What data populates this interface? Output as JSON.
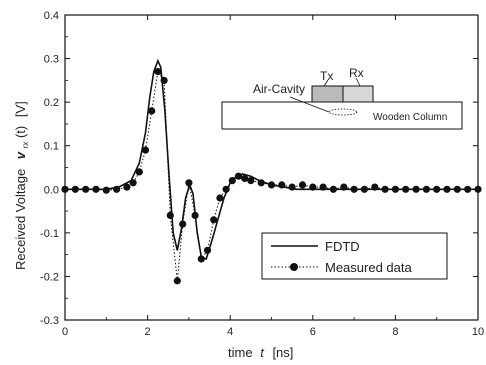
{
  "chart_data": {
    "type": "line",
    "xlabel_prefix": "time",
    "xlabel_var": "t",
    "xlabel_unit": "[ns]",
    "ylabel_prefix": "Received Voltage",
    "ylabel_var": "v",
    "ylabel_sub": "rx",
    "ylabel_suffix": "(t)",
    "ylabel_unit": "[V]",
    "xlim": [
      0,
      10
    ],
    "ylim": [
      -0.3,
      0.4
    ],
    "x_ticks": [
      0,
      2,
      4,
      6,
      8,
      10
    ],
    "x_tick_labels": [
      "0",
      "2",
      "4",
      "6",
      "8",
      "10"
    ],
    "y_ticks": [
      -0.3,
      -0.2,
      -0.1,
      0.0,
      0.1,
      0.2,
      0.3,
      0.4
    ],
    "y_tick_labels": [
      "-0.3",
      "-0.2",
      "-0.1",
      "0.0",
      "0.1",
      "0.2",
      "0.3",
      "0.4"
    ],
    "series": [
      {
        "name": "FDTD",
        "style": "solid",
        "color": "#111111",
        "x": [
          0,
          0.5,
          1.0,
          1.3,
          1.6,
          1.8,
          1.95,
          2.05,
          2.15,
          2.25,
          2.32,
          2.42,
          2.52,
          2.62,
          2.72,
          2.82,
          2.92,
          3.02,
          3.1,
          3.2,
          3.3,
          3.42,
          3.55,
          3.7,
          3.85,
          4.0,
          4.15,
          4.3,
          4.5,
          4.7,
          5.0,
          5.3,
          5.6,
          6.0,
          7.0,
          8.0,
          9.0,
          10.0
        ],
        "y": [
          0,
          0,
          0,
          0.005,
          0.02,
          0.06,
          0.13,
          0.21,
          0.27,
          0.295,
          0.28,
          0.18,
          0.03,
          -0.1,
          -0.14,
          -0.09,
          -0.02,
          0.01,
          -0.01,
          -0.1,
          -0.155,
          -0.16,
          -0.12,
          -0.07,
          -0.02,
          0.015,
          0.03,
          0.035,
          0.03,
          0.02,
          0.01,
          0.005,
          0,
          0,
          0,
          0,
          0,
          0
        ]
      },
      {
        "name": "Measured data",
        "style": "dotted-with-markers",
        "color": "#111111",
        "x": [
          0,
          0.25,
          0.5,
          0.75,
          1.0,
          1.25,
          1.5,
          1.65,
          1.8,
          1.95,
          2.1,
          2.25,
          2.4,
          2.55,
          2.72,
          2.85,
          3.0,
          3.15,
          3.3,
          3.45,
          3.6,
          3.75,
          3.9,
          4.05,
          4.2,
          4.35,
          4.5,
          4.75,
          5.0,
          5.25,
          5.5,
          5.75,
          6.0,
          6.25,
          6.5,
          6.75,
          7.0,
          7.25,
          7.5,
          7.75,
          8.0,
          8.25,
          8.5,
          8.75,
          9.0,
          9.25,
          9.5,
          9.75,
          10.0
        ],
        "y": [
          0,
          0,
          0,
          0,
          -0.002,
          0,
          0.005,
          0.015,
          0.04,
          0.09,
          0.18,
          0.27,
          0.25,
          -0.06,
          -0.21,
          -0.08,
          0.015,
          -0.06,
          -0.16,
          -0.14,
          -0.07,
          -0.02,
          0.0,
          0.02,
          0.03,
          0.025,
          0.02,
          0.015,
          0.01,
          0.01,
          0.005,
          0.01,
          0.005,
          0.005,
          0,
          0.005,
          0,
          0,
          0.005,
          0,
          0,
          0,
          0,
          0,
          0,
          0,
          0,
          0,
          0
        ]
      }
    ],
    "legend": {
      "placement": "lower-right"
    },
    "inset": {
      "air_cavity_label": "Air-Cavity",
      "tx_label": "Tx",
      "rx_label": "Rx",
      "column_label": "Wooden Column"
    }
  }
}
